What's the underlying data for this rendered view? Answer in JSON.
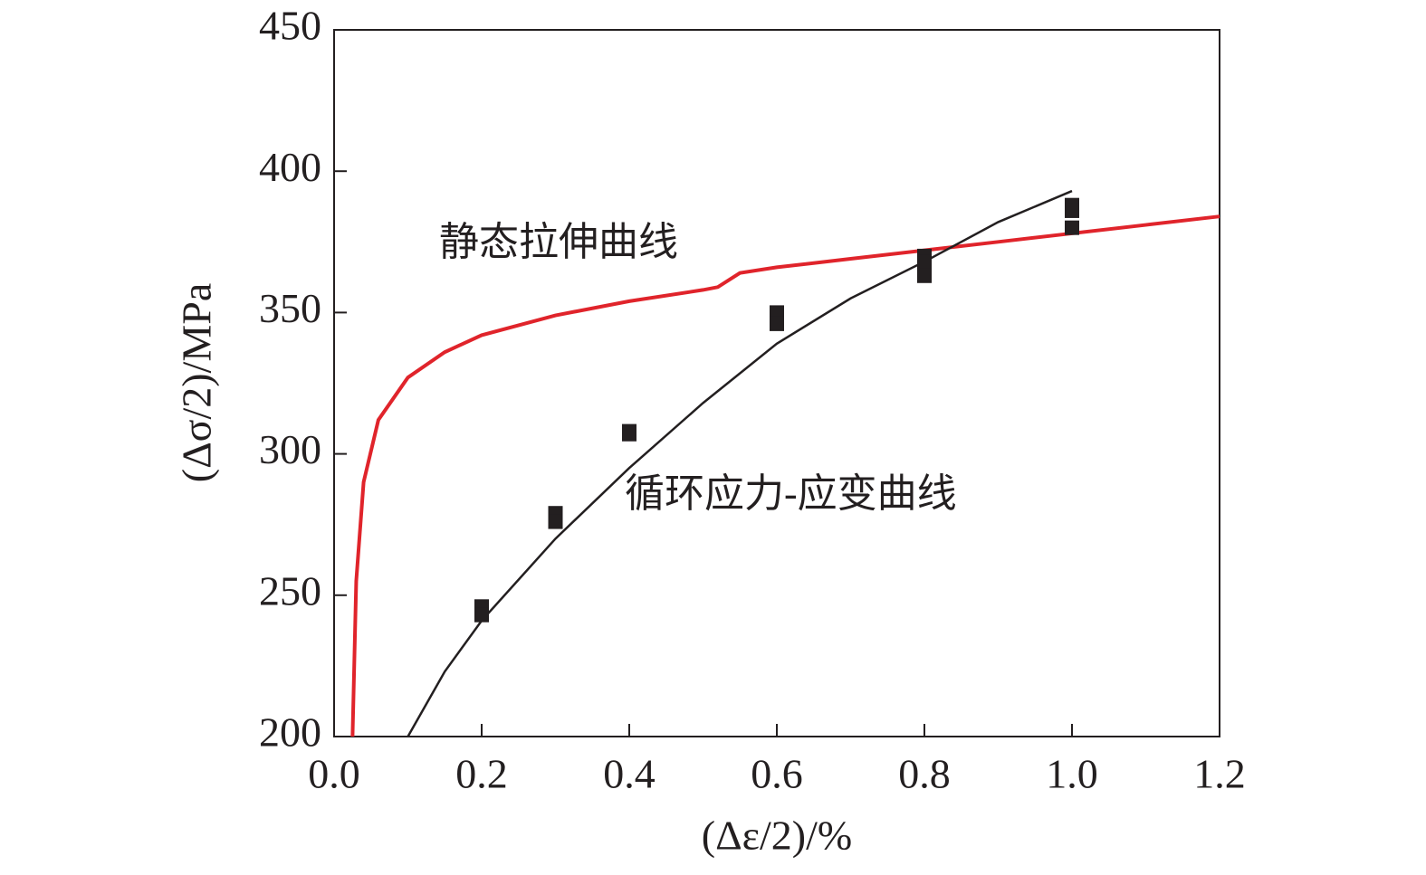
{
  "chart_data": {
    "type": "line",
    "x_label": "(Δε/2)/%",
    "y_label": "(Δσ/2)/MPa",
    "annotations": [
      "静态拉伸曲线",
      "循环应力-应变曲线"
    ],
    "xlim": [
      0,
      1.2
    ],
    "xticks": [
      {
        "value": 0,
        "label": "0.0"
      },
      0.2,
      0.4,
      0.6,
      0.8,
      {
        "value": 1,
        "label": "1.0"
      },
      1.2
    ],
    "ylim": [
      200,
      450
    ],
    "yticks": [
      200,
      250,
      300,
      350,
      400,
      450
    ],
    "points": {
      "color": "#231f20",
      "x": [
        0.2,
        0.2,
        0.3,
        0.3,
        0.4,
        0.4,
        0.6,
        0.6,
        0.8,
        0.8,
        0.8,
        1.0,
        1.0,
        1.0
      ],
      "y": [
        246,
        243,
        279,
        276,
        308,
        307,
        350,
        346,
        370,
        368,
        363,
        388,
        386,
        380
      ]
    },
    "series": [
      {
        "color": "#e0242b",
        "x": [
          0.025,
          0.03,
          0.04,
          0.06,
          0.1,
          0.15,
          0.2,
          0.3,
          0.4,
          0.5,
          0.52,
          0.55,
          0.6,
          0.7,
          0.8,
          0.9,
          1.0,
          1.1,
          1.2
        ],
        "values": [
          200,
          255,
          290,
          312,
          327,
          336,
          342,
          349,
          354,
          358,
          359,
          364,
          366,
          369,
          372,
          375,
          378,
          381,
          384
        ]
      },
      {
        "color": "#231f20",
        "x": [
          0.1,
          0.15,
          0.2,
          0.3,
          0.4,
          0.5,
          0.6,
          0.7,
          0.8,
          0.9,
          1.0
        ],
        "values": [
          200,
          223,
          241,
          270,
          295,
          318,
          339,
          355,
          368,
          382,
          393
        ]
      }
    ]
  }
}
